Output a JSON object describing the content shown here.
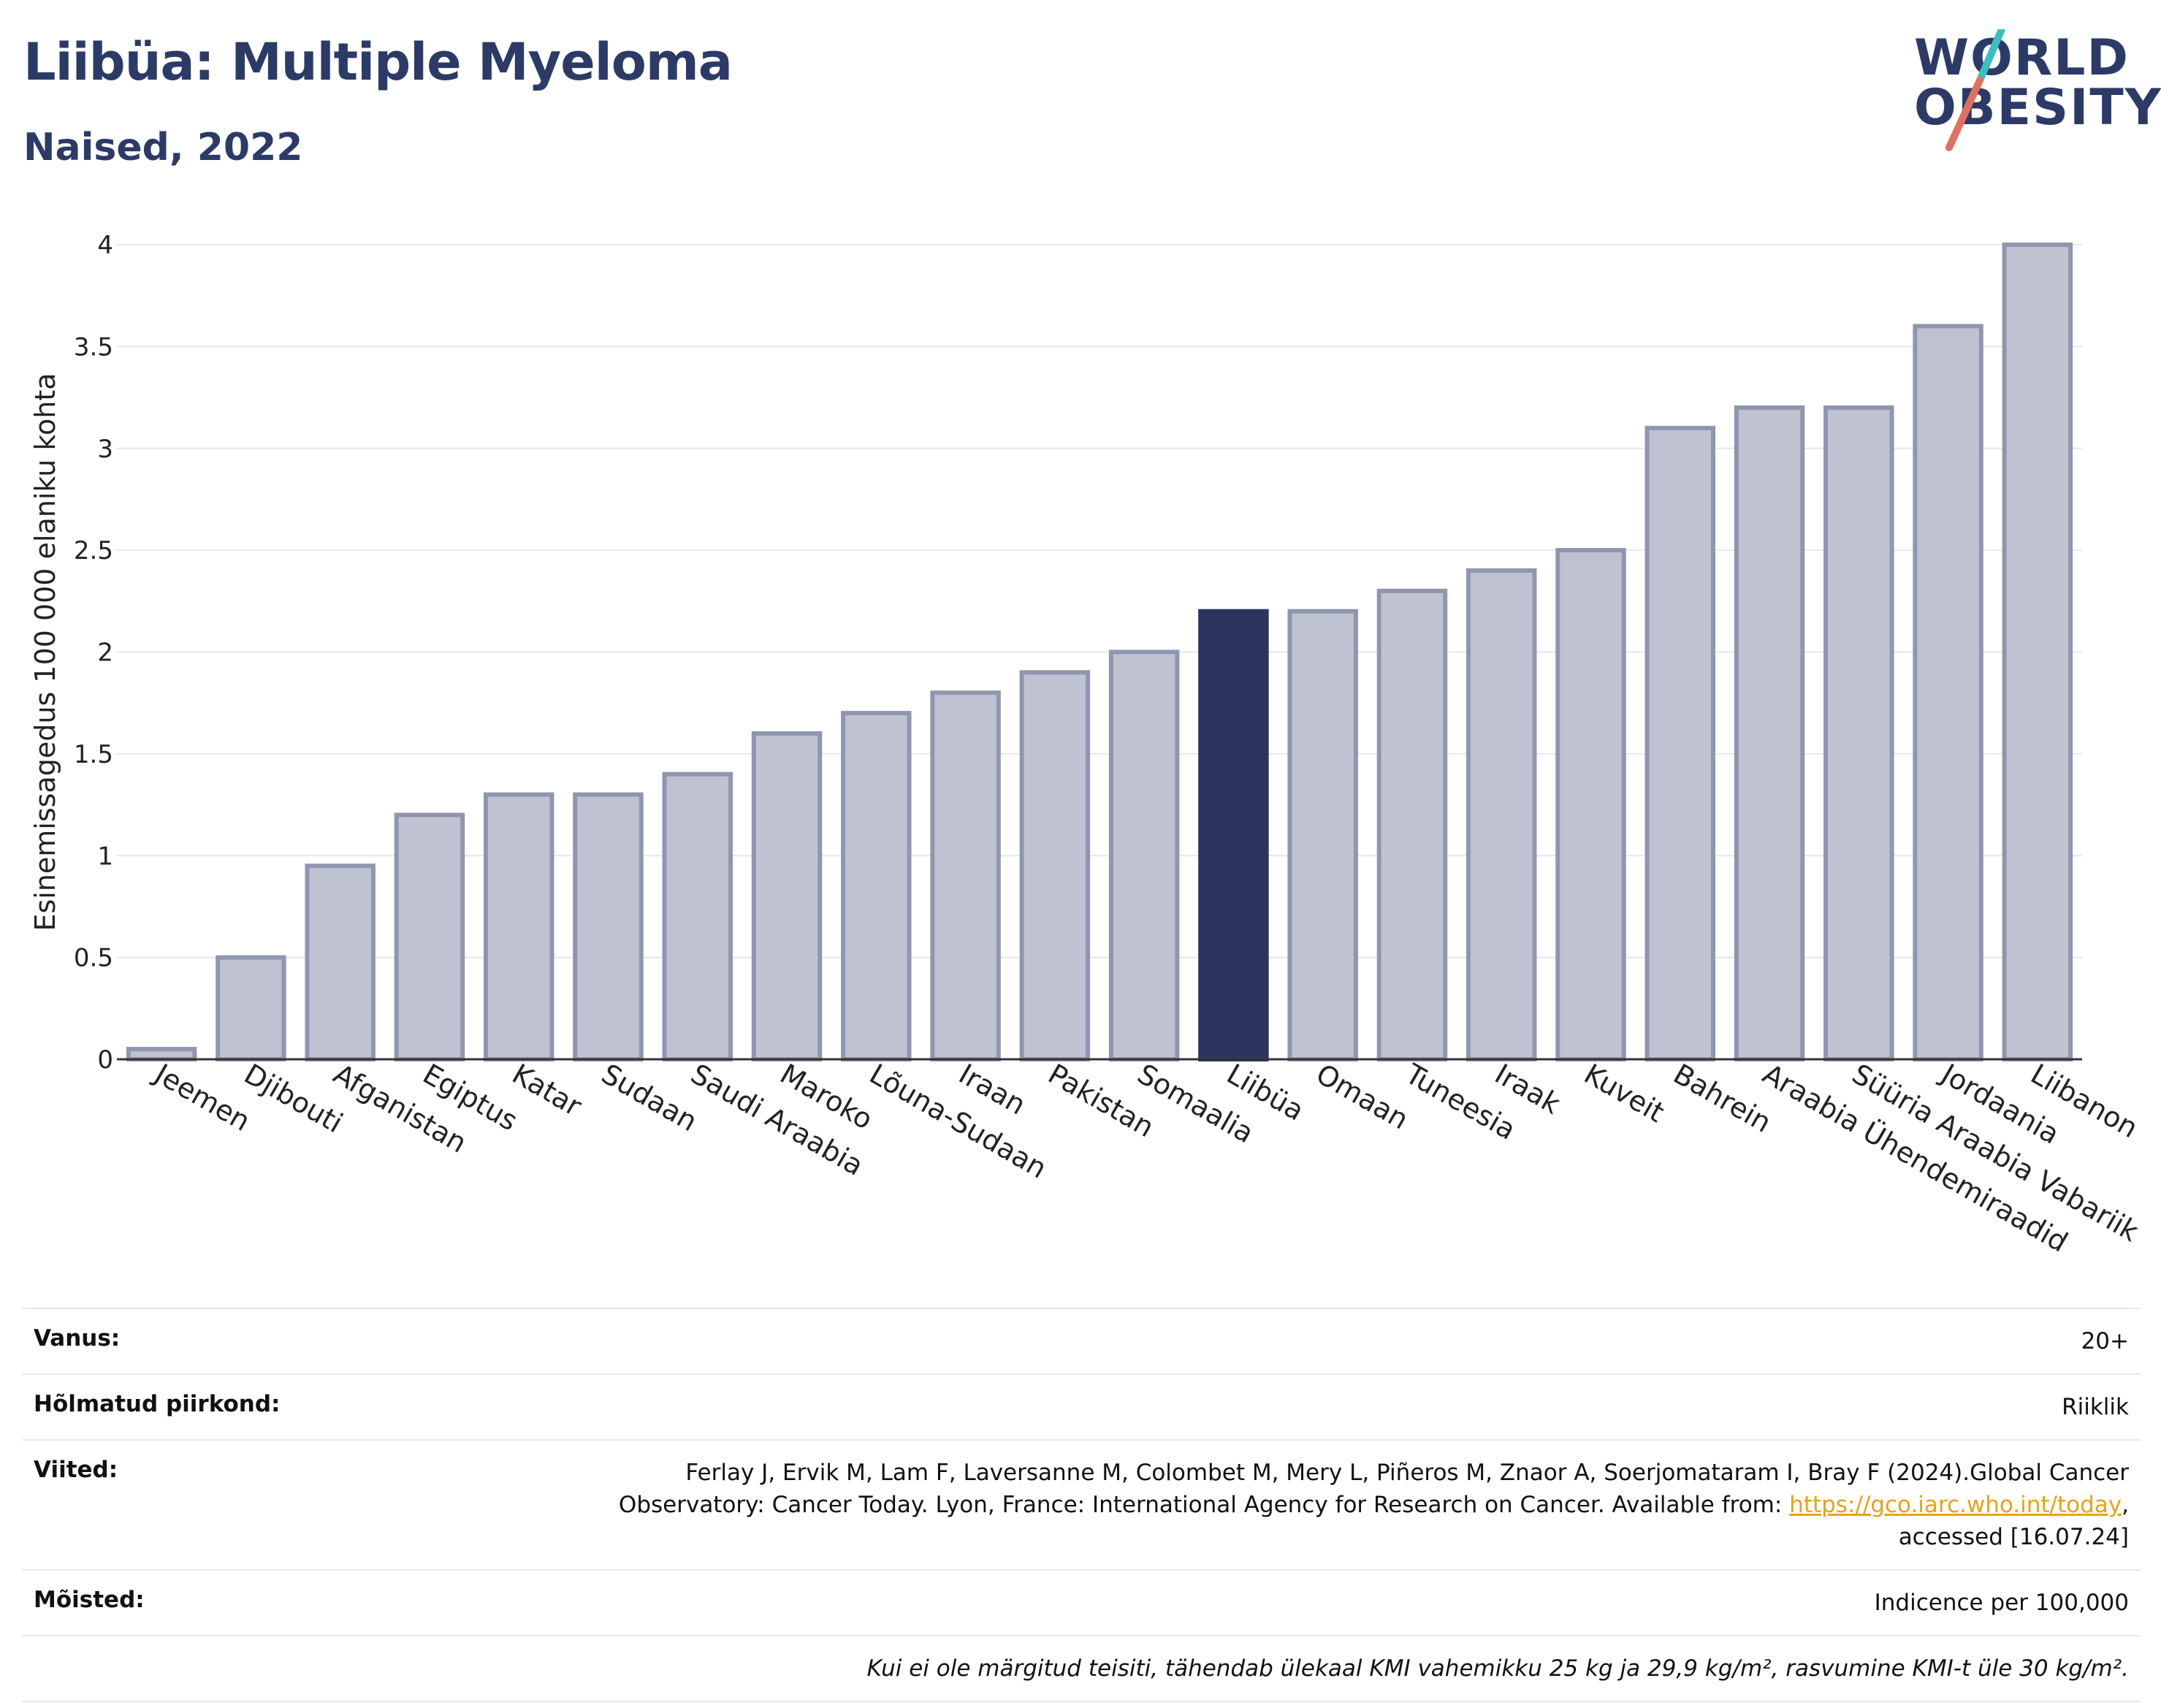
{
  "header": {
    "title": "Liibüa: Multiple Myeloma",
    "subtitle": "Naised, 2022"
  },
  "logo": {
    "line1": "WORLD",
    "line2": "OBESITY"
  },
  "colors": {
    "bar": "#bfc3d1",
    "bar_border": "#8f96ae",
    "highlight": "#2b3560",
    "grid": "#e5e7ec"
  },
  "chart_data": {
    "type": "bar",
    "ylabel": "Esinemissagedus 100 000 elaniku kohta",
    "ylim": [
      0,
      4
    ],
    "yticks": [
      "0",
      "0.5",
      "1",
      "1.5",
      "2",
      "2.5",
      "3",
      "3.5",
      "4"
    ],
    "grid": true,
    "highlight": "Liibüa",
    "categories": [
      "Jeemen",
      "Djibouti",
      "Afganistan",
      "Egiptus",
      "Katar",
      "Sudaan",
      "Saudi Araabia",
      "Maroko",
      "Lõuna-Sudaan",
      "Iraan",
      "Pakistan",
      "Somaalia",
      "Liibüa",
      "Omaan",
      "Tuneesia",
      "Iraak",
      "Kuveit",
      "Bahrein",
      "Araabia Ühendemiraadid",
      "Süüria Araabia Vabariik",
      "Jordaania",
      "Liibanon"
    ],
    "values": [
      0.05,
      0.5,
      0.95,
      1.2,
      1.3,
      1.3,
      1.4,
      1.6,
      1.7,
      1.8,
      1.9,
      2.0,
      2.2,
      2.2,
      2.3,
      2.4,
      2.5,
      3.1,
      3.2,
      3.2,
      3.6,
      4.0
    ]
  },
  "info": {
    "age_label": "Vanus:",
    "age_value": "20+",
    "coverage_label": "Hõlmatud piirkond:",
    "coverage_value": "Riiklik",
    "refs_label": "Viited:",
    "refs_text": "Ferlay J, Ervik M, Lam F, Laversanne M, Colombet M, Mery L, Piñeros M, Znaor A, Soerjomataram I, Bray F (2024).Global Cancer Observatory: Cancer Today. Lyon, France: International Agency for Research on Cancer. Available from:",
    "refs_link": "https://gco.iarc.who.int/today",
    "refs_tail": ", accessed [16.07.24]",
    "defs_label": "Mõisted:",
    "defs_value": "Indicence per 100,000",
    "note": "Kui ei ole märgitud teisiti, tähendab ülekaal KMI vahemikku 25 kg ja 29,9 kg/m², rasvumine KMI-t üle 30 kg/m²."
  }
}
